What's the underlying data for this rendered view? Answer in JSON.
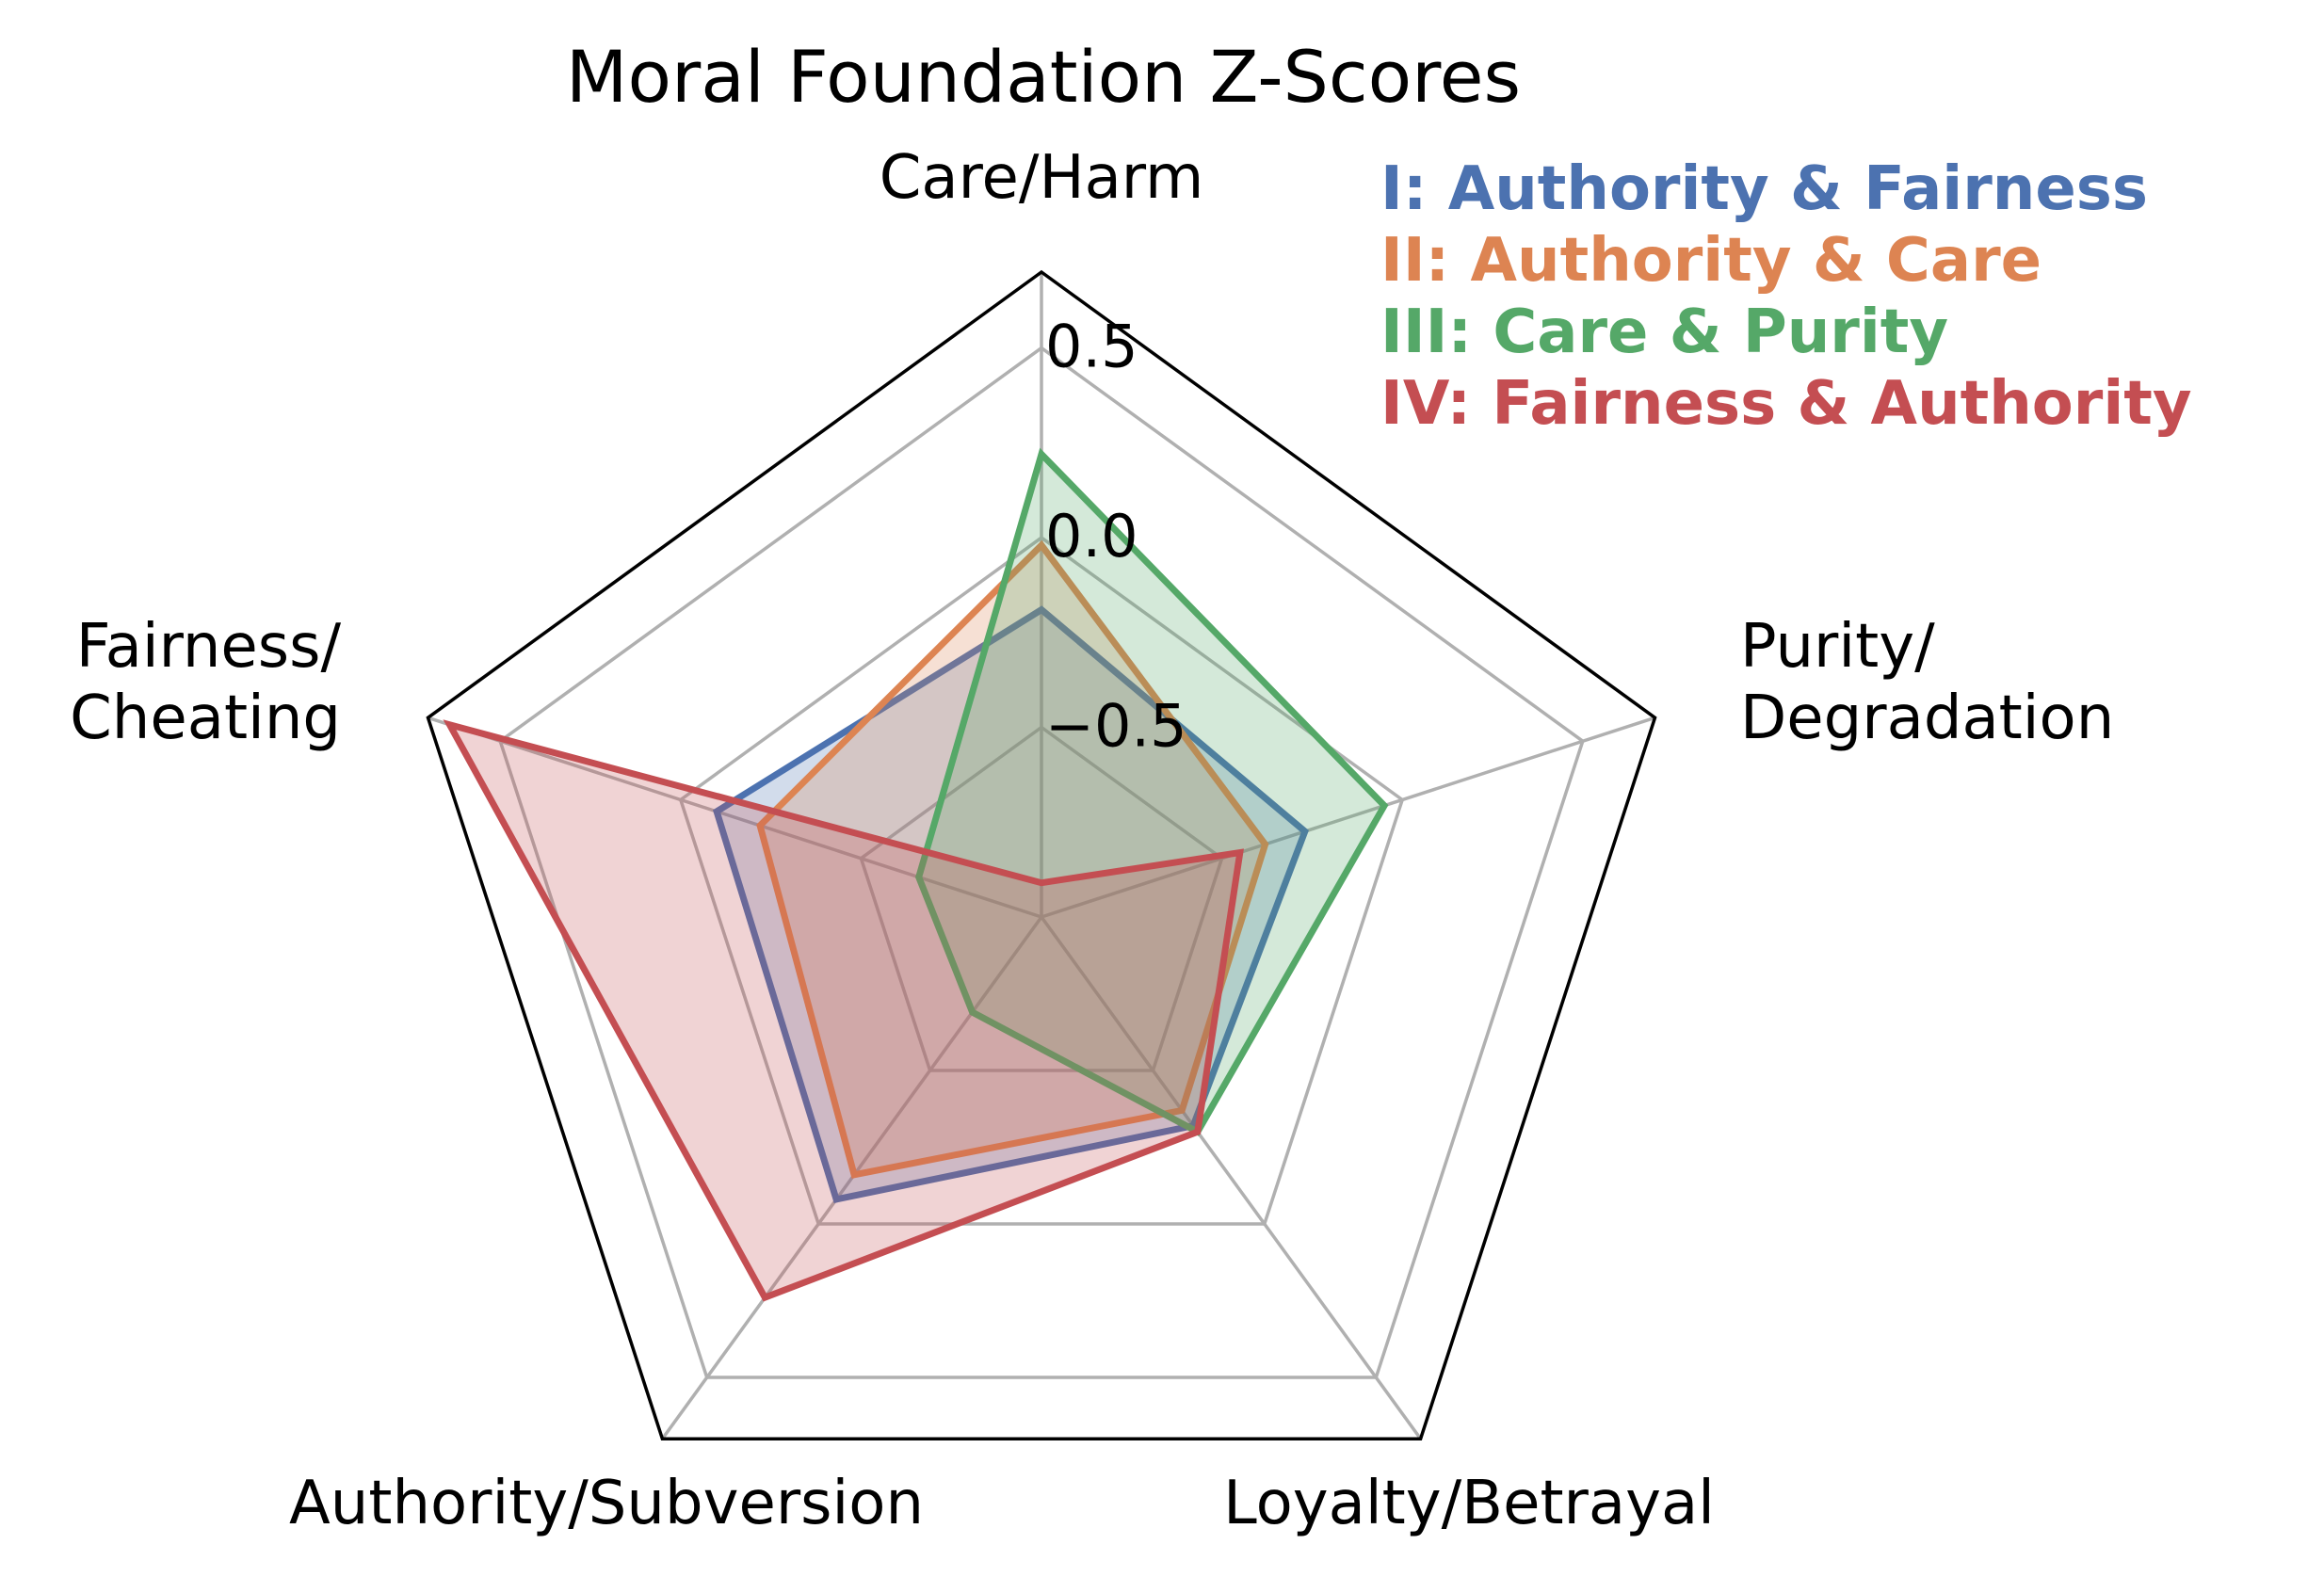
{
  "chart_data": {
    "type": "radar",
    "title": "Moral Foundation Z-Scores",
    "axes": [
      {
        "lines": [
          "Care/Harm"
        ]
      },
      {
        "lines": [
          "Purity/",
          "Degradation"
        ]
      },
      {
        "lines": [
          "Loyalty/Betrayal"
        ]
      },
      {
        "lines": [
          "Authority/Subversion"
        ]
      },
      {
        "lines": [
          "Fairness/",
          "Cheating"
        ]
      }
    ],
    "rlim": [
      -1.0,
      0.7
    ],
    "grid_ticks": [
      -1.0,
      -0.5,
      0.0,
      0.5
    ],
    "tick_labels": [
      "−0.5",
      "0.0",
      "0.5"
    ],
    "tick_values": [
      -0.5,
      0.0,
      0.5
    ],
    "grid": true,
    "legend_position": "top-right",
    "series": [
      {
        "name": "I: Authority & Fairness",
        "color": "#4c72b0",
        "values": [
          -0.19,
          -0.27,
          -0.32,
          -0.08,
          -0.1
        ]
      },
      {
        "name": "II: Authority & Care",
        "color": "#dd8452",
        "values": [
          -0.02,
          -0.38,
          -0.37,
          -0.16,
          -0.22
        ]
      },
      {
        "name": "III: Care & Purity",
        "color": "#55a868",
        "values": [
          0.22,
          -0.05,
          -0.3,
          -0.69,
          -0.66
        ]
      },
      {
        "name": "IV: Fairness & Authority",
        "color": "#c44e52",
        "values": [
          -0.91,
          -0.45,
          -0.3,
          0.24,
          0.64
        ]
      }
    ]
  }
}
